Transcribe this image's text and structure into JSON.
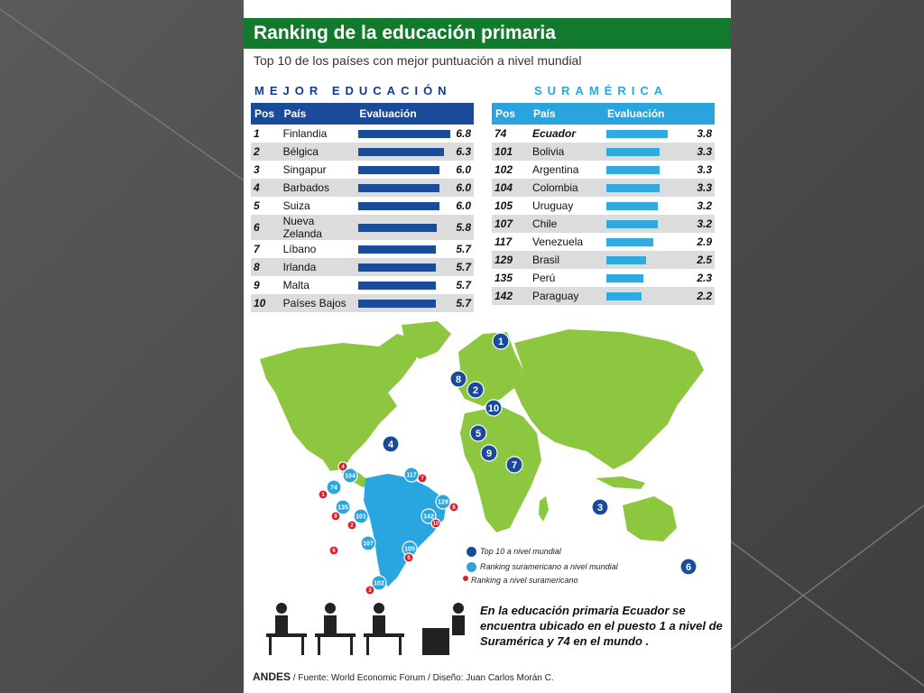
{
  "header": {
    "title": "Ranking de la educación primaria",
    "subtitle": "Top 10 de los países con mejor puntuación a nivel mundial"
  },
  "sections": {
    "left": "MEJOR EDUCACIÓN",
    "right": "SURAMÉRICA"
  },
  "columns": {
    "pos": "Pos",
    "country": "País",
    "eval": "Evaluación"
  },
  "chart_data": [
    {
      "type": "bar",
      "title": "MEJOR EDUCACIÓN",
      "positions": [
        "1",
        "2",
        "3",
        "4",
        "5",
        "6",
        "7",
        "8",
        "9",
        "10"
      ],
      "categories": [
        "Finlandia",
        "Bélgica",
        "Singapur",
        "Barbados",
        "Suiza",
        "Nueva Zelanda",
        "Líbano",
        "Irlanda",
        "Malta",
        "Países Bajos"
      ],
      "values": [
        6.8,
        6.3,
        6.0,
        6.0,
        6.0,
        5.8,
        5.7,
        5.7,
        5.7,
        5.7
      ],
      "labels": [
        "6.8",
        "6.3",
        "6.0",
        "6.0",
        "6.0",
        "5.8",
        "5.7",
        "5.7",
        "5.7",
        "5.7"
      ],
      "xlim": [
        0,
        7
      ]
    },
    {
      "type": "bar",
      "title": "SURAMÉRICA",
      "positions": [
        "74",
        "101",
        "102",
        "104",
        "105",
        "107",
        "117",
        "129",
        "135",
        "142"
      ],
      "categories": [
        "Ecuador",
        "Bolivia",
        "Argentina",
        "Colombia",
        "Uruguay",
        "Chile",
        "Venezuela",
        "Brasil",
        "Perú",
        "Paraguay"
      ],
      "values": [
        3.8,
        3.3,
        3.3,
        3.3,
        3.2,
        3.2,
        2.9,
        2.5,
        2.3,
        2.2
      ],
      "labels": [
        "3.8",
        "3.3",
        "3.3",
        "3.3",
        "3.2",
        "3.2",
        "2.9",
        "2.5",
        "2.3",
        "2.2"
      ],
      "xlim": [
        0,
        4.5
      ]
    }
  ],
  "map": {
    "world_markers": [
      "1",
      "2",
      "3",
      "4",
      "5",
      "6",
      "7",
      "8",
      "9",
      "10"
    ],
    "sa_world": [
      "74",
      "101",
      "102",
      "104",
      "105",
      "107",
      "117",
      "129",
      "135",
      "142"
    ],
    "sa_regional": [
      "1",
      "2",
      "3",
      "4",
      "5",
      "6",
      "7",
      "8",
      "9",
      "10"
    ],
    "colors": {
      "land": "#8dc63f",
      "top10": "#1a4b9a",
      "sa_world": "#29a6df",
      "sa_regional": "#d7202e",
      "south_america": "#29a6df"
    }
  },
  "legend": {
    "top10": "Top 10 a nivel mundial",
    "sa_world": "Ranking suramericano a nivel mundial",
    "sa_regional": "Ranking a nivel suramericano"
  },
  "footer": {
    "note": "En la educación primaria Ecuador se encuentra ubicado en el puesto 1 a nivel de Suramérica y 74 en el mundo .",
    "brand": "ANDES",
    "source": "/ Fuente: World Economic Forum /",
    "design": "Diseño: Juan Carlos Morán C."
  }
}
